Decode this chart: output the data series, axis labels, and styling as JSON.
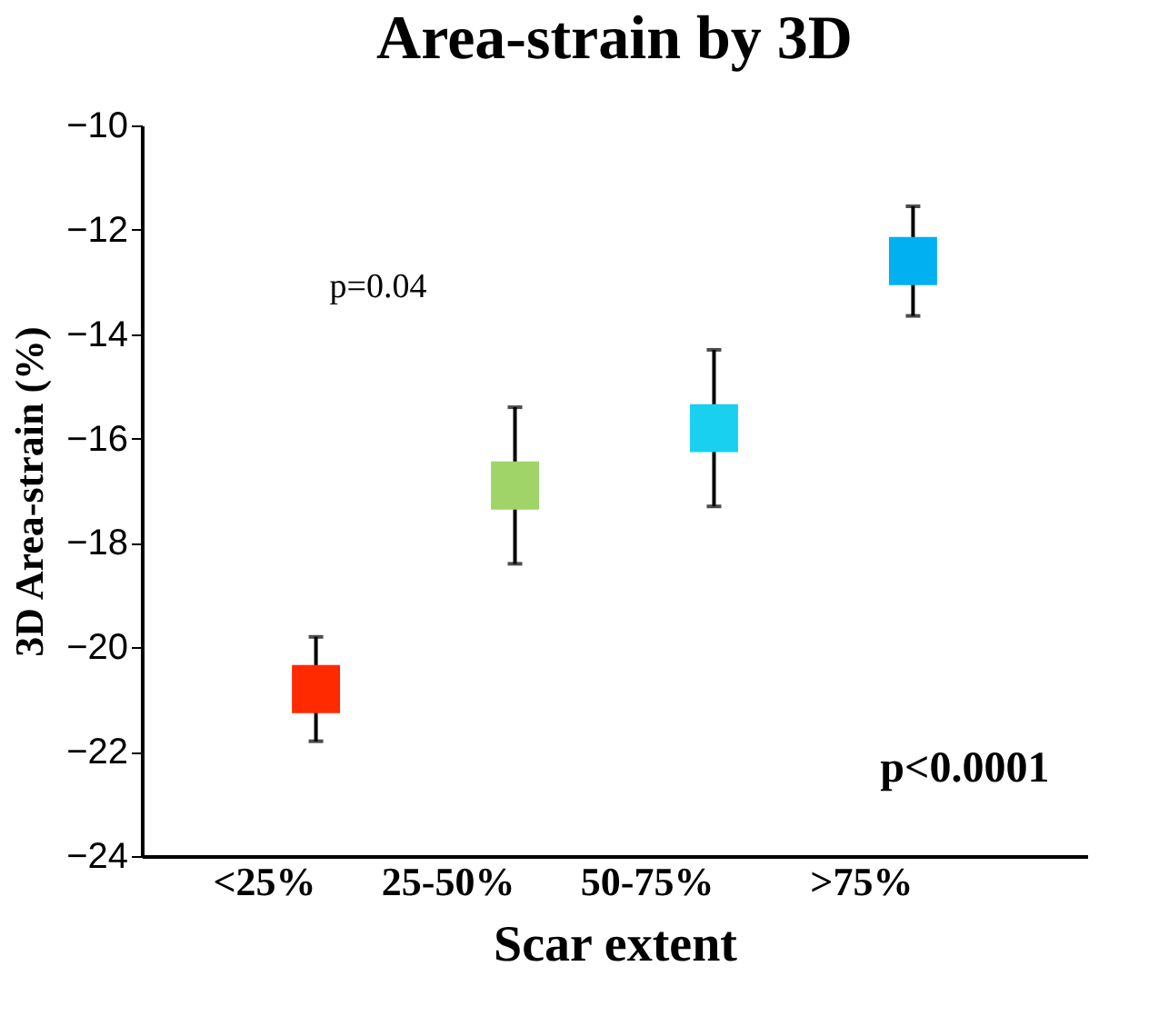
{
  "chart_data": {
    "type": "scatter",
    "title": "Area-strain by 3D",
    "xlabel": "Scar extent",
    "ylabel": "3D Area-strain (%)",
    "categories": [
      "<25%",
      "25-50%",
      "50-75%",
      ">75%"
    ],
    "values": [
      -20.8,
      -16.9,
      -15.8,
      -12.6
    ],
    "errors": [
      1.0,
      1.5,
      1.5,
      1.05
    ],
    "colors": [
      "#ff2a00",
      "#a0d468",
      "#1ad0f0",
      "#00b0f0"
    ],
    "marker": "square",
    "grid": false,
    "ylim": [
      -24,
      -10
    ],
    "yticks": [
      -24,
      -22,
      -20,
      -18,
      -16,
      -14,
      -12,
      -10
    ],
    "annotations": [
      "p=0.04",
      "p<0.0001"
    ]
  }
}
